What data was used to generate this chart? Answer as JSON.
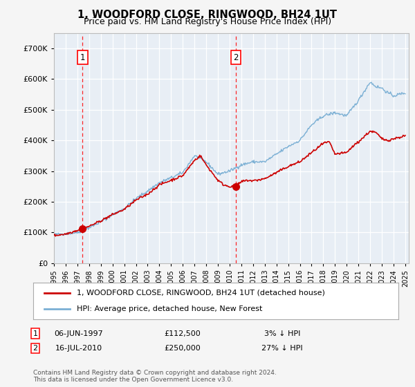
{
  "title": "1, WOODFORD CLOSE, RINGWOOD, BH24 1UT",
  "subtitle": "Price paid vs. HM Land Registry's House Price Index (HPI)",
  "legend_line1": "1, WOODFORD CLOSE, RINGWOOD, BH24 1UT (detached house)",
  "legend_line2": "HPI: Average price, detached house, New Forest",
  "sale1_date": "06-JUN-1997",
  "sale1_price": 112500,
  "sale1_pct": "3%",
  "sale2_date": "16-JUL-2010",
  "sale2_price": 250000,
  "sale2_pct": "27%",
  "footnote": "Contains HM Land Registry data © Crown copyright and database right 2024.\nThis data is licensed under the Open Government Licence v3.0.",
  "price_line_color": "#cc0000",
  "hpi_line_color": "#7aafd4",
  "fig_bg_color": "#f5f5f5",
  "plot_bg_color": "#e8eef5",
  "grid_color": "#ffffff",
  "ylim": [
    0,
    750000
  ],
  "yticks": [
    0,
    100000,
    200000,
    300000,
    400000,
    500000,
    600000,
    700000
  ],
  "sale1_x": 1997.45,
  "sale2_x": 2010.54,
  "hpi_anchors_x": [
    1995,
    1996,
    1997,
    1998,
    1999,
    2000,
    2001,
    2002,
    2003,
    2004,
    2005,
    2006,
    2007,
    2008,
    2009,
    2010,
    2011,
    2012,
    2013,
    2014,
    2015,
    2016,
    2017,
    2018,
    2019,
    2020,
    2021,
    2022,
    2022.5,
    2023,
    2023.5,
    2024,
    2025
  ],
  "hpi_anchors_y": [
    93000,
    96000,
    100000,
    115000,
    135000,
    158000,
    178000,
    210000,
    235000,
    262000,
    278000,
    295000,
    350000,
    330000,
    290000,
    300000,
    320000,
    330000,
    330000,
    355000,
    380000,
    400000,
    450000,
    480000,
    490000,
    480000,
    530000,
    590000,
    575000,
    570000,
    555000,
    545000,
    555000
  ],
  "prop_anchors_x": [
    1995,
    1996,
    1997.45,
    1998,
    1999,
    2000,
    2001,
    2002,
    2003,
    2004,
    2005,
    2006,
    2007,
    2007.5,
    2008,
    2008.5,
    2009,
    2009.5,
    2010,
    2010.54,
    2011,
    2011.5,
    2012,
    2013,
    2014,
    2015,
    2016,
    2017,
    2018,
    2018.5,
    2019,
    2020,
    2020.5,
    2021,
    2022,
    2022.5,
    2023,
    2023.5,
    2024,
    2025
  ],
  "prop_anchors_y": [
    90000,
    95000,
    112500,
    120000,
    138000,
    158000,
    175000,
    205000,
    225000,
    255000,
    270000,
    285000,
    335000,
    350000,
    320000,
    295000,
    270000,
    255000,
    250000,
    250000,
    265000,
    270000,
    268000,
    275000,
    295000,
    315000,
    330000,
    360000,
    390000,
    395000,
    355000,
    360000,
    380000,
    395000,
    430000,
    425000,
    405000,
    400000,
    405000,
    415000
  ]
}
